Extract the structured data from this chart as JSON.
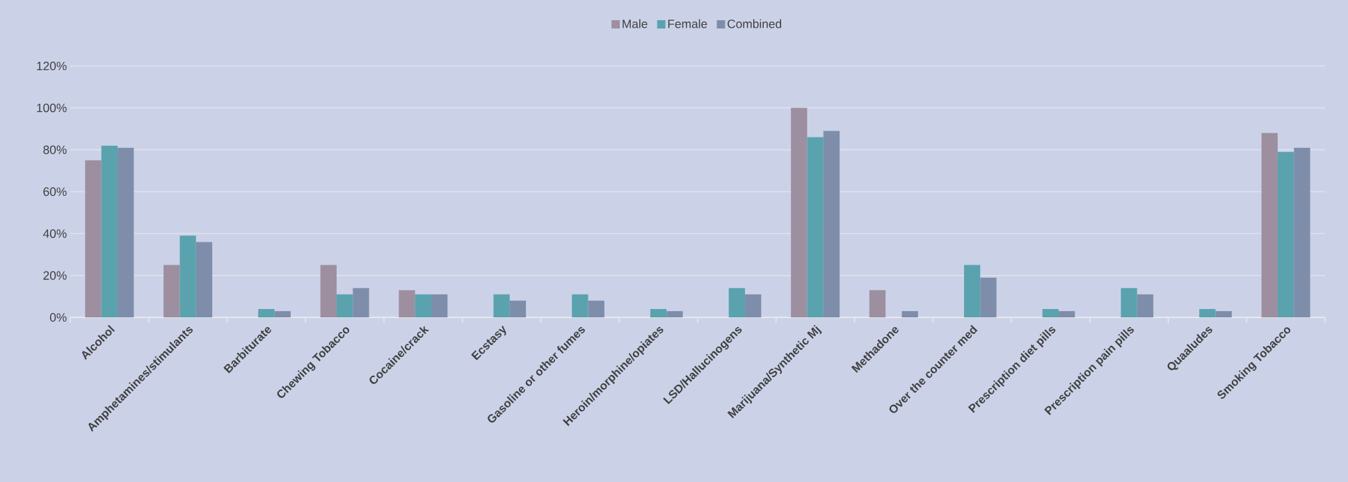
{
  "chart_data": {
    "type": "bar",
    "categories": [
      "Alcohol",
      "Amphetamines/stimulants",
      "Barbiturate",
      "Chewing Tobacco",
      "Cocaine/crack",
      "Ecstasy",
      "Gasoline or other fumes",
      "Heroin/morphine/opiates",
      "LSD/Hallucinogens",
      "Marijuana/Synthetic Mj",
      "Methadone",
      "Over the counter med",
      "Prescription diet pills",
      "Prescription pain pills",
      "Quaaludes",
      "Smoking Tobacco"
    ],
    "series": [
      {
        "name": "Male",
        "color": "#9e8fa0",
        "values": [
          75,
          25,
          0,
          25,
          13,
          0,
          0,
          0,
          0,
          100,
          13,
          0,
          0,
          0,
          0,
          88
        ]
      },
      {
        "name": "Female",
        "color": "#5aa3ae",
        "values": [
          82,
          39,
          4,
          11,
          11,
          11,
          11,
          4,
          14,
          86,
          0,
          25,
          4,
          14,
          4,
          79
        ]
      },
      {
        "name": "Combined",
        "color": "#7e8eaa",
        "values": [
          81,
          36,
          3,
          14,
          11,
          8,
          8,
          3,
          11,
          89,
          3,
          19,
          3,
          11,
          3,
          81
        ]
      }
    ],
    "ylim": [
      0,
      120
    ],
    "yticks": [
      {
        "value": 0,
        "label": "0%"
      },
      {
        "value": 20,
        "label": "20%"
      },
      {
        "value": 40,
        "label": "40%"
      },
      {
        "value": 60,
        "label": "60%"
      },
      {
        "value": 80,
        "label": "80%"
      },
      {
        "value": 100,
        "label": "100%"
      },
      {
        "value": 120,
        "label": "120%"
      }
    ],
    "grid": "y",
    "legend": "top"
  }
}
